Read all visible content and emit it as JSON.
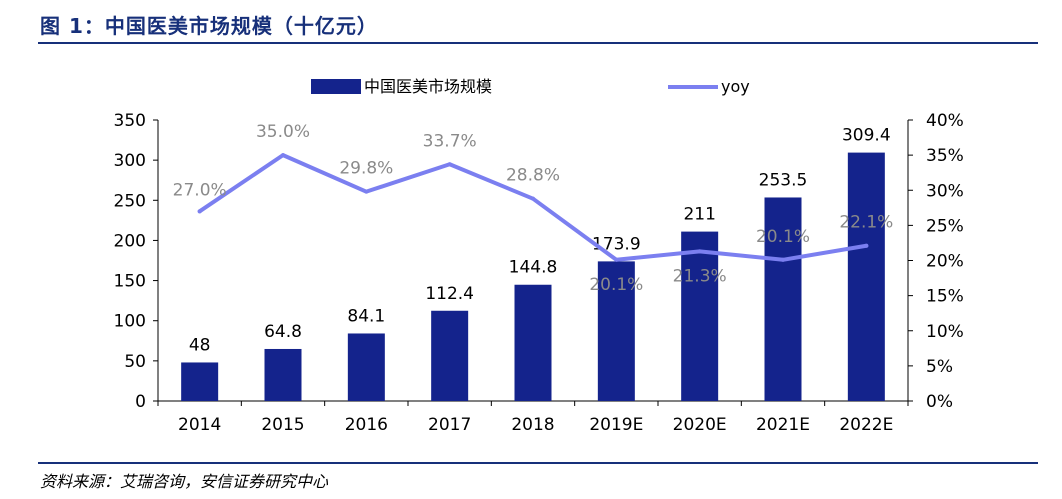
{
  "header": {
    "title": "图 1：中国医美市场规模（十亿元）"
  },
  "footer": {
    "source": "资料来源：艾瑞咨询，安信证券研究中心"
  },
  "chart_data": {
    "type": "bar",
    "title": "中国医美市场规模（十亿元）",
    "categories": [
      "2014",
      "2015",
      "2016",
      "2017",
      "2018",
      "2019E",
      "2020E",
      "2021E",
      "2022E"
    ],
    "series": [
      {
        "name": "中国医美市场规模",
        "kind": "bar",
        "axis": "left",
        "values": [
          48,
          64.8,
          84.1,
          112.4,
          144.8,
          173.9,
          211,
          253.5,
          309.4
        ],
        "labels": [
          "48",
          "64.8",
          "84.1",
          "112.4",
          "144.8",
          "173.9",
          "211",
          "253.5",
          "309.4"
        ]
      },
      {
        "name": "yoy",
        "kind": "line",
        "axis": "right",
        "values": [
          27.0,
          35.0,
          29.8,
          33.7,
          28.8,
          20.1,
          21.3,
          20.1,
          22.1
        ],
        "labels": [
          "27.0%",
          "35.0%",
          "29.8%",
          "33.7%",
          "28.8%",
          "20.1%",
          "21.3%",
          "20.1%",
          "22.1%"
        ]
      }
    ],
    "ylim": [
      0,
      350
    ],
    "y2lim": [
      0,
      40
    ],
    "yticks": [
      "0",
      "50",
      "100",
      "150",
      "200",
      "250",
      "300",
      "350"
    ],
    "y2ticks": [
      "0%",
      "5%",
      "10%",
      "15%",
      "20%",
      "25%",
      "30%",
      "35%",
      "40%"
    ],
    "legend_position": "top",
    "colors": {
      "bar": "#14238c",
      "line": "#7b7ff0",
      "label_gray": "#8a8a8a",
      "accent": "#17307a"
    }
  }
}
